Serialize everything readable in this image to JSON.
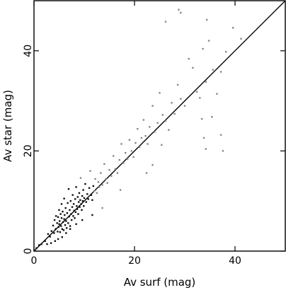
{
  "chart_data": {
    "type": "scatter",
    "title": "",
    "xlabel": "Av surf (mag)",
    "ylabel": "Av star (mag)",
    "xlim": [
      0,
      50
    ],
    "ylim": [
      0,
      50
    ],
    "xticks": [
      0,
      20,
      40
    ],
    "yticks": [
      0,
      20,
      40
    ],
    "grid": false,
    "reference_line": {
      "label": "",
      "x": [
        0,
        50
      ],
      "y": [
        0,
        50
      ]
    },
    "series": [
      {
        "name": "",
        "color_dense": "#111111",
        "color_sparse": "#888888",
        "points": [
          [
            0.5,
            0.6
          ],
          [
            1.0,
            1.2
          ],
          [
            1.5,
            1.4
          ],
          [
            2.2,
            2.0
          ],
          [
            2.8,
            3.4
          ],
          [
            3.2,
            2.9
          ],
          [
            3.5,
            4.0
          ],
          [
            3.8,
            5.1
          ],
          [
            4.0,
            3.6
          ],
          [
            4.1,
            6.2
          ],
          [
            4.3,
            4.4
          ],
          [
            4.4,
            7.0
          ],
          [
            4.6,
            5.6
          ],
          [
            4.7,
            3.9
          ],
          [
            4.8,
            6.8
          ],
          [
            4.9,
            4.8
          ],
          [
            5.0,
            5.4
          ],
          [
            5.0,
            8.2
          ],
          [
            5.1,
            6.0
          ],
          [
            5.2,
            3.8
          ],
          [
            5.3,
            7.4
          ],
          [
            5.4,
            5.0
          ],
          [
            5.5,
            6.6
          ],
          [
            5.5,
            9.4
          ],
          [
            5.6,
            4.4
          ],
          [
            5.7,
            7.9
          ],
          [
            5.8,
            5.8
          ],
          [
            5.9,
            4.2
          ],
          [
            6.0,
            6.4
          ],
          [
            6.0,
            10.5
          ],
          [
            6.1,
            7.2
          ],
          [
            6.2,
            5.2
          ],
          [
            6.3,
            8.6
          ],
          [
            6.4,
            6.0
          ],
          [
            6.5,
            4.6
          ],
          [
            6.6,
            7.6
          ],
          [
            6.7,
            9.6
          ],
          [
            6.8,
            5.6
          ],
          [
            6.9,
            12.4
          ],
          [
            7.0,
            6.9
          ],
          [
            7.1,
            8.2
          ],
          [
            7.2,
            5.0
          ],
          [
            7.3,
            10.0
          ],
          [
            7.4,
            7.4
          ],
          [
            7.5,
            6.2
          ],
          [
            7.6,
            8.8
          ],
          [
            7.7,
            11.2
          ],
          [
            7.8,
            7.0
          ],
          [
            7.9,
            9.4
          ],
          [
            8.0,
            8.1
          ],
          [
            8.1,
            6.6
          ],
          [
            8.2,
            10.4
          ],
          [
            8.3,
            7.8
          ],
          [
            8.4,
            12.8
          ],
          [
            8.5,
            9.0
          ],
          [
            8.6,
            8.4
          ],
          [
            8.7,
            10.8
          ],
          [
            8.8,
            7.4
          ],
          [
            8.9,
            9.8
          ],
          [
            9.0,
            11.6
          ],
          [
            9.1,
            8.8
          ],
          [
            9.2,
            10.2
          ],
          [
            9.3,
            14.6
          ],
          [
            9.4,
            9.4
          ],
          [
            9.5,
            8.2
          ],
          [
            9.6,
            11.0
          ],
          [
            9.7,
            10.0
          ],
          [
            9.8,
            12.2
          ],
          [
            9.9,
            9.0
          ],
          [
            10.0,
            10.6
          ],
          [
            10.2,
            13.4
          ],
          [
            10.4,
            9.8
          ],
          [
            10.6,
            11.4
          ],
          [
            10.8,
            10.4
          ],
          [
            11.0,
            12.6
          ],
          [
            11.2,
            16.0
          ],
          [
            11.4,
            11.2
          ],
          [
            11.6,
            10.2
          ],
          [
            11.8,
            13.0
          ],
          [
            12.0,
            12.0
          ],
          [
            12.2,
            14.4
          ],
          [
            12.5,
            11.6
          ],
          [
            12.8,
            13.8
          ],
          [
            13.0,
            12.8
          ],
          [
            13.3,
            15.6
          ],
          [
            13.6,
            13.2
          ],
          [
            14.0,
            17.4
          ],
          [
            14.3,
            14.4
          ],
          [
            14.6,
            13.6
          ],
          [
            15.0,
            16.2
          ],
          [
            15.4,
            15.0
          ],
          [
            15.8,
            19.0
          ],
          [
            16.2,
            16.4
          ],
          [
            16.6,
            15.6
          ],
          [
            17.0,
            18.2
          ],
          [
            17.4,
            21.4
          ],
          [
            17.8,
            17.6
          ],
          [
            18.2,
            19.6
          ],
          [
            18.6,
            18.4
          ],
          [
            19.0,
            22.2
          ],
          [
            19.4,
            20.0
          ],
          [
            19.8,
            18.8
          ],
          [
            20.2,
            21.6
          ],
          [
            20.6,
            24.4
          ],
          [
            21.0,
            20.8
          ],
          [
            21.4,
            22.6
          ],
          [
            21.8,
            26.2
          ],
          [
            22.2,
            23.0
          ],
          [
            22.6,
            21.4
          ],
          [
            23.0,
            24.8
          ],
          [
            23.6,
            29.0
          ],
          [
            24.0,
            23.8
          ],
          [
            24.6,
            25.6
          ],
          [
            25.0,
            31.6
          ],
          [
            25.6,
            27.2
          ],
          [
            26.2,
            26.0
          ],
          [
            26.8,
            24.2
          ],
          [
            27.4,
            29.6
          ],
          [
            28.0,
            27.4
          ],
          [
            28.6,
            33.2
          ],
          [
            29.2,
            30.4
          ],
          [
            30.0,
            29.0
          ],
          [
            30.8,
            38.4
          ],
          [
            31.6,
            36.6
          ],
          [
            32.4,
            31.8
          ],
          [
            33.0,
            30.6
          ],
          [
            33.6,
            40.4
          ],
          [
            34.2,
            33.8
          ],
          [
            34.8,
            42.0
          ],
          [
            35.6,
            36.2
          ],
          [
            36.4,
            31.4
          ],
          [
            37.2,
            35.8
          ],
          [
            38.2,
            39.8
          ],
          [
            39.6,
            44.6
          ],
          [
            41.2,
            42.4
          ],
          [
            26.2,
            45.8
          ],
          [
            28.8,
            48.2
          ],
          [
            29.2,
            47.6
          ],
          [
            34.4,
            46.2
          ],
          [
            33.4,
            26.4
          ],
          [
            33.8,
            22.6
          ],
          [
            34.2,
            20.4
          ],
          [
            35.4,
            26.8
          ],
          [
            37.2,
            23.2
          ],
          [
            37.6,
            20.0
          ],
          [
            25.4,
            21.2
          ],
          [
            23.6,
            17.2
          ],
          [
            22.4,
            15.6
          ],
          [
            17.2,
            12.2
          ],
          [
            13.6,
            8.6
          ],
          [
            11.6,
            7.2
          ],
          [
            9.6,
            6.2
          ],
          [
            8.4,
            5.4
          ],
          [
            7.2,
            4.4
          ],
          [
            6.4,
            3.6
          ],
          [
            5.6,
            2.8
          ],
          [
            4.8,
            2.4
          ],
          [
            4.2,
            2.0
          ],
          [
            3.4,
            1.6
          ],
          [
            2.6,
            1.4
          ]
        ]
      }
    ]
  }
}
